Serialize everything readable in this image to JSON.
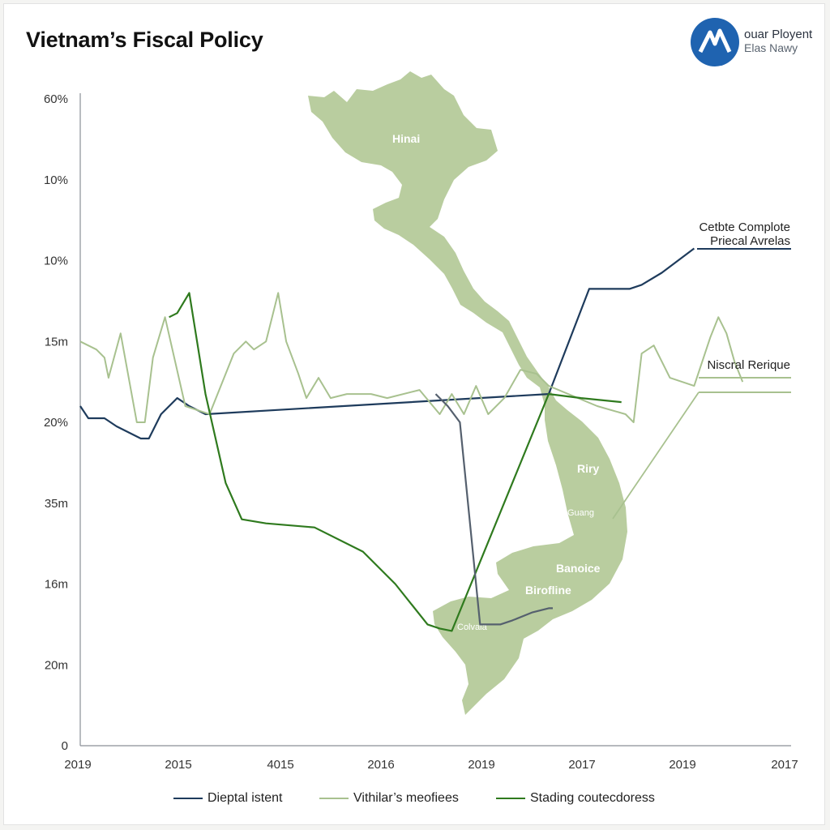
{
  "title": "Vietnam’s Fiscal Policy",
  "logo": {
    "line1": "ouar Ployent",
    "line2": "Elas Nawy",
    "icon": "mountain-logo-icon",
    "colors": {
      "circle": "#1f63b0",
      "mark": "#ffffff"
    }
  },
  "colors": {
    "map_fill": "#b9cd9f",
    "series_blue": "#1e3b5c",
    "series_light_green": "#a8c18f",
    "series_dark_green": "#2f7a1e",
    "series_gray": "#55606e",
    "axis": "#8a8f96"
  },
  "map": {
    "labels": [
      "Hinai",
      "Riry",
      "Guang",
      "Banoice",
      "Birofline",
      "Colvaia"
    ]
  },
  "chart_data": {
    "type": "line",
    "title": "Vietnam’s Fiscal Policy",
    "xlabel": "",
    "ylabel": "",
    "y_tick_labels": [
      "60%",
      "10%",
      "10%",
      "15m",
      "20%",
      "35m",
      "16m",
      "20m",
      "0"
    ],
    "x_tick_labels": [
      "2019",
      "2015",
      "4015",
      "2016",
      "2019",
      "2017",
      "2019",
      "2017"
    ],
    "x_range": [
      0,
      8.8
    ],
    "y_range": [
      0,
      8
    ],
    "grid": false,
    "legend_position": "bottom",
    "series": [
      {
        "name": "Dieptal istent",
        "color": "#1e3b5c",
        "x": [
          0,
          0.1,
          0.3,
          0.45,
          0.75,
          0.85,
          1.0,
          1.2,
          1.35,
          1.55,
          5.8,
          6.3,
          6.8,
          6.95,
          7.2,
          7.6
        ],
        "y": [
          4.2,
          4.05,
          4.05,
          3.95,
          3.8,
          3.8,
          4.1,
          4.3,
          4.2,
          4.1,
          4.35,
          5.65,
          5.65,
          5.7,
          5.85,
          6.15
        ]
      },
      {
        "name": "Vithilar’s meofiees",
        "color": "#a8c18f",
        "x": [
          0,
          0.2,
          0.3,
          0.35,
          0.5,
          0.7,
          0.8,
          0.9,
          1.05,
          1.3,
          1.6,
          1.9,
          2.05,
          2.15,
          2.3,
          2.45,
          2.55,
          2.7,
          2.8,
          2.95,
          3.1,
          3.3,
          3.6,
          3.8,
          4.2,
          4.45,
          4.6,
          4.75,
          4.9,
          5.05,
          5.25,
          5.45,
          5.65,
          5.8,
          6.4,
          6.75,
          6.85,
          6.95,
          7.1,
          7.3,
          7.6,
          7.8,
          7.9,
          8.0,
          8.1,
          8.2
        ],
        "y": [
          5.0,
          4.9,
          4.8,
          4.55,
          5.1,
          4.0,
          4.0,
          4.8,
          5.3,
          4.2,
          4.1,
          4.85,
          5.0,
          4.9,
          5.0,
          5.6,
          5.0,
          4.6,
          4.3,
          4.55,
          4.3,
          4.35,
          4.35,
          4.3,
          4.4,
          4.1,
          4.35,
          4.1,
          4.45,
          4.1,
          4.3,
          4.65,
          4.6,
          4.45,
          4.2,
          4.1,
          4.0,
          4.85,
          4.95,
          4.55,
          4.45,
          5.05,
          5.3,
          5.1,
          4.75,
          4.5
        ]
      },
      {
        "name": "Stading coutecdoress",
        "color": "#2f7a1e",
        "x": [
          1.1,
          1.2,
          1.35,
          1.55,
          1.8,
          2.0,
          2.3,
          2.9,
          3.5,
          3.9,
          4.3,
          4.45,
          4.6,
          5.8,
          6.2,
          6.7
        ],
        "y": [
          5.3,
          5.35,
          5.6,
          4.35,
          3.25,
          2.8,
          2.75,
          2.7,
          2.4,
          2.0,
          1.5,
          1.45,
          1.42,
          4.35,
          4.3,
          4.25
        ]
      },
      {
        "name": "",
        "color": "#55606e",
        "x": [
          4.4,
          4.55,
          4.7,
          4.95,
          5.2,
          5.35,
          5.6,
          5.8,
          5.85
        ],
        "y": [
          4.35,
          4.2,
          4.0,
          1.5,
          1.5,
          1.55,
          1.65,
          1.7,
          1.7
        ]
      }
    ],
    "annotations": [
      {
        "text": "Cetbte Complote",
        "color": "#222"
      },
      {
        "text": "Priecal Avrelas",
        "color": "#222"
      },
      {
        "text": "Niscral Rerique",
        "color": "#222"
      }
    ]
  },
  "legend": {
    "items": [
      {
        "label": "Dieptal istent",
        "color": "#1e3b5c"
      },
      {
        "label": "Vithilar’s meofiees",
        "color": "#a8c18f"
      },
      {
        "label": "Stading coutecdoress",
        "color": "#2f7a1e"
      }
    ]
  }
}
